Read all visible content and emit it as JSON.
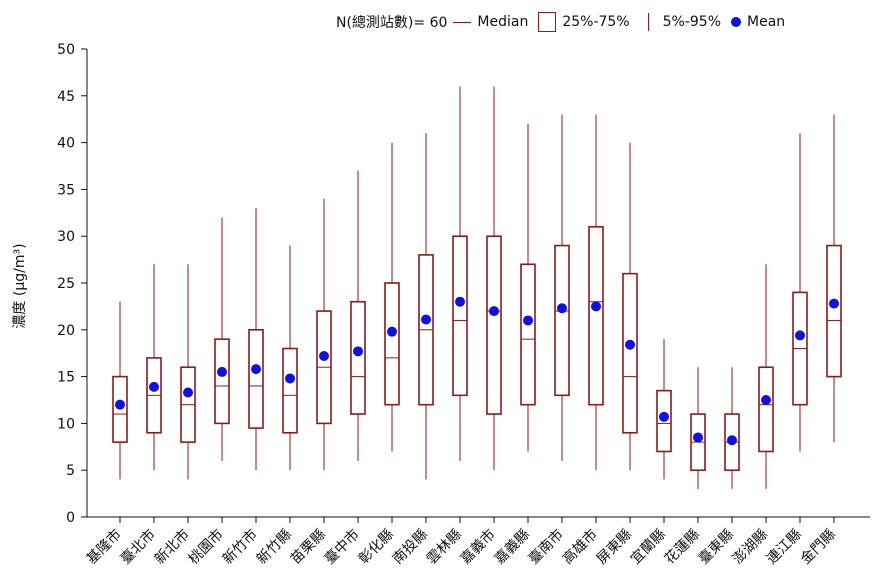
{
  "legend": {
    "n_label": "N(總測站數)= 60",
    "median": "Median",
    "iqr": "25%-75%",
    "whisker": "5%-95%",
    "mean": "Mean"
  },
  "chart_data": {
    "type": "box",
    "ylabel": "濃度 (μg/m³)",
    "ylim": [
      0,
      50
    ],
    "yticks": [
      0,
      5,
      10,
      15,
      20,
      25,
      30,
      35,
      40,
      45,
      50
    ],
    "grid": false,
    "legend_position": "top-right",
    "categories": [
      "基隆市",
      "臺北市",
      "新北市",
      "桃園市",
      "新竹市",
      "新竹縣",
      "苗栗縣",
      "臺中市",
      "彰化縣",
      "南投縣",
      "雲林縣",
      "嘉義市",
      "嘉義縣",
      "臺南市",
      "高雄市",
      "屏東縣",
      "宜蘭縣",
      "花蓮縣",
      "臺東縣",
      "澎湖縣",
      "連江縣",
      "金門縣"
    ],
    "p5": [
      4,
      5,
      4,
      6,
      5,
      5,
      5,
      6,
      7,
      4,
      6,
      5,
      7,
      6,
      5,
      5,
      4,
      3,
      3,
      3,
      7,
      8
    ],
    "q1": [
      8,
      9,
      8,
      10,
      9.5,
      9,
      10,
      11,
      12,
      12,
      13,
      11,
      12,
      13,
      12,
      9,
      7,
      5,
      5,
      7,
      12,
      15
    ],
    "median": [
      11,
      13,
      12,
      14,
      14,
      13,
      16,
      15,
      17,
      20,
      21,
      22,
      19,
      22,
      23,
      15,
      10,
      8,
      8,
      12,
      18,
      21
    ],
    "q3": [
      15,
      17,
      16,
      19,
      20,
      18,
      22,
      23,
      25,
      28,
      30,
      30,
      27,
      29,
      31,
      26,
      13.5,
      11,
      11,
      16,
      24,
      29
    ],
    "p95": [
      23,
      27,
      27,
      32,
      33,
      29,
      34,
      37,
      40,
      41,
      46,
      46,
      42,
      43,
      43,
      40,
      19,
      16,
      16,
      27,
      41,
      43
    ],
    "mean": [
      12,
      13.9,
      13.3,
      15.5,
      15.8,
      14.8,
      17.2,
      17.7,
      19.8,
      21.1,
      23,
      22,
      21,
      22.3,
      22.5,
      18.4,
      10.7,
      8.5,
      8.2,
      12.5,
      19.4,
      22.8
    ],
    "colors": {
      "box": "#8b1a1a",
      "mean": "#1010e0"
    }
  }
}
